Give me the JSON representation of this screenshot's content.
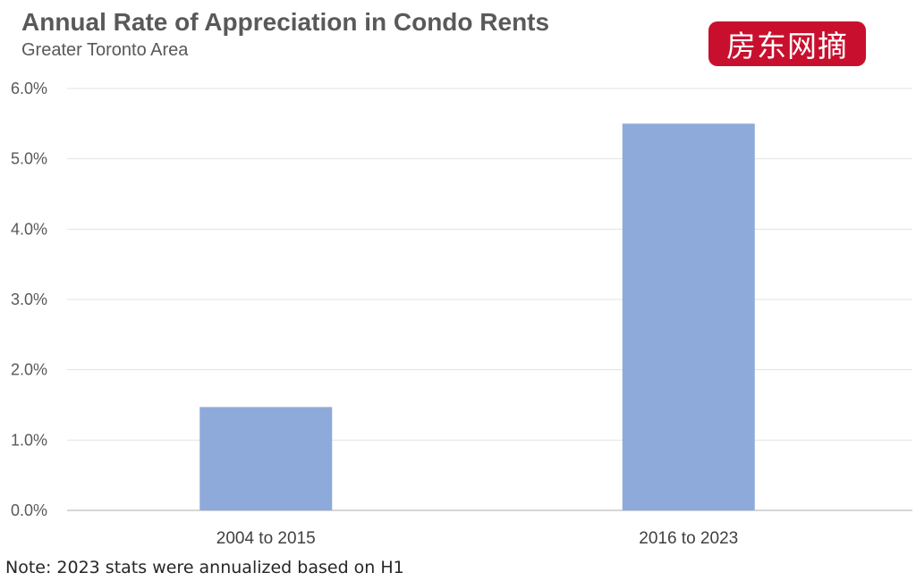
{
  "header": {
    "title": "Annual Rate of Appreciation in Condo Rents",
    "subtitle": "Greater Toronto Area"
  },
  "watermark": {
    "text": "房东网摘",
    "color": "#c8102e"
  },
  "note": "Note: 2023 stats were annualized based on H1",
  "chart_data": {
    "type": "bar",
    "title": "Annual Rate of Appreciation in Condo Rents",
    "subtitle": "Greater Toronto Area",
    "categories": [
      "2004 to 2015",
      "2016 to 2023"
    ],
    "values": [
      1.47,
      5.5
    ],
    "unit": "%",
    "ylim": [
      0,
      6
    ],
    "yticks": [
      0,
      1,
      2,
      3,
      4,
      5,
      6
    ],
    "ytick_labels": [
      "0.0%",
      "1.0%",
      "2.0%",
      "3.0%",
      "4.0%",
      "5.0%",
      "6.0%"
    ],
    "xlabel": "",
    "ylabel": "",
    "bar_color": "#8eaadb",
    "grid": true,
    "legend": "none"
  }
}
